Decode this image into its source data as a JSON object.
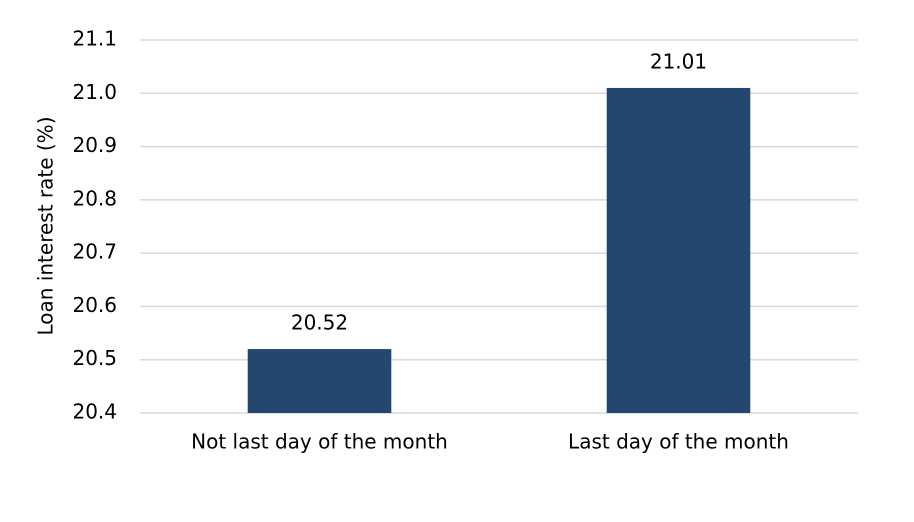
{
  "chart_data": {
    "type": "bar",
    "y_label": "Loan interest rate (%)",
    "categories": [
      "Not last day of the month",
      "Last day of the month"
    ],
    "values": [
      20.52,
      21.01
    ],
    "color": "#24476f",
    "ylim": [
      20.4,
      21.1
    ],
    "yticks": [
      20.4,
      20.5,
      20.6,
      20.7,
      20.8,
      20.9,
      {
        "value": 21,
        "label": "21.0"
      },
      21.1
    ],
    "grid": true
  }
}
